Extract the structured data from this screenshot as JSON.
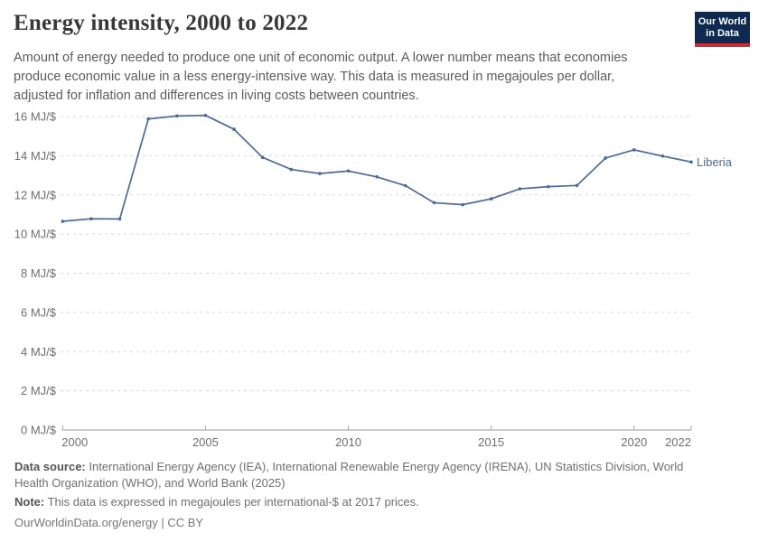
{
  "header": {
    "title": "Energy intensity, 2000 to 2022",
    "subtitle_lines": [
      "Amount of energy needed to produce one unit of economic output. A lower number means that economies",
      "produce economic value in a less energy-intensive way. This data is measured in megajoules per dollar,",
      "adjusted for inflation and differences in living costs between countries."
    ],
    "logo": {
      "line1": "Our World",
      "line2": "in Data",
      "bg_color": "#0e2a52",
      "bar_color": "#cb2d33"
    }
  },
  "chart_data": {
    "type": "line",
    "title": "Energy intensity, 2000 to 2022",
    "unit": "MJ/$",
    "xlim": [
      2000,
      2022
    ],
    "ylim": [
      0,
      16
    ],
    "x_ticks": [
      2000,
      2005,
      2010,
      2015,
      2020,
      2022
    ],
    "y_ticks": [
      0,
      2,
      4,
      6,
      8,
      10,
      12,
      14,
      16
    ],
    "y_tick_suffix": " MJ/$",
    "grid": "horizontal-dashed",
    "legend_position": "end-of-line-label",
    "series": [
      {
        "name": "Liberia",
        "color": "#4a699c",
        "x": [
          2000,
          2001,
          2002,
          2003,
          2004,
          2005,
          2006,
          2007,
          2008,
          2009,
          2010,
          2011,
          2012,
          2013,
          2014,
          2015,
          2016,
          2017,
          2018,
          2019,
          2020,
          2021,
          2022
        ],
        "values": [
          10.65,
          10.78,
          10.77,
          15.88,
          16.03,
          16.06,
          15.35,
          13.91,
          13.3,
          13.09,
          13.22,
          12.92,
          12.47,
          11.6,
          11.5,
          11.8,
          12.31,
          12.42,
          12.48,
          13.88,
          14.3,
          13.98,
          13.68
        ]
      }
    ]
  },
  "footer": {
    "source_label": "Data source:",
    "source_text": " International Energy Agency (IEA), International Renewable Energy Agency (IRENA), UN Statistics Division, World Health Organization (WHO), and World Bank (2025)",
    "note_label": "Note:",
    "note_text": " This data is expressed in megajoules per international-$ at 2017 prices.",
    "license": "OurWorldinData.org/energy | CC BY"
  },
  "colors": {
    "title": "#383838",
    "subtitle": "#5c5c5c",
    "axis_labels": "#6e6e6e",
    "gridline": "#d9d9d9",
    "axis_line": "#9a9a9a",
    "series_blue": "#4a699c",
    "logo_navy": "#0e2a52",
    "logo_red": "#cb2d33"
  }
}
